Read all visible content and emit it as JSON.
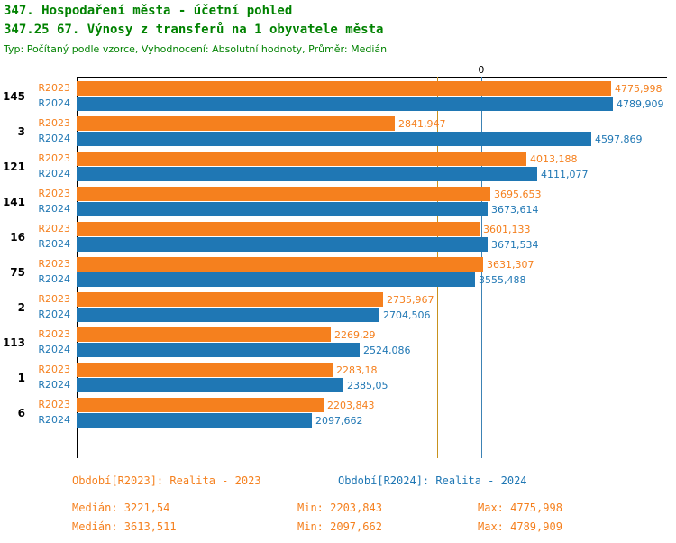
{
  "header": {
    "title": "347. Hospodaření města - účetní pohled",
    "subtitle": "347.25 67. Výnosy z transferů na 1 obyvatele města",
    "meta": "Typ: Počítaný podle vzorce, Vyhodnocení: Absolutní hodnoty, Průměr: Medián"
  },
  "colors": {
    "title-green": "#008200",
    "r2023": "#F5801E",
    "r2024": "#1F77B4",
    "median-r2023": "#C8921E",
    "median-r2024": "#3C82B4",
    "axis": "#000000"
  },
  "chart_data": {
    "type": "bar",
    "orientation": "horizontal",
    "grid": false,
    "legend_position": "bottom",
    "axis_zero_label": "0",
    "xmax": 4789.909,
    "categories": [
      "145",
      "3",
      "121",
      "141",
      "16",
      "75",
      "2",
      "113",
      "1",
      "6"
    ],
    "series": [
      {
        "name": "R2023",
        "color_key": "r2023",
        "values": [
          4775.998,
          2841.947,
          4013.188,
          3695.653,
          3601.133,
          3631.307,
          2735.967,
          2269.29,
          2283.18,
          2203.843
        ],
        "labels": [
          "4775,998",
          "2841,947",
          "4013,188",
          "3695,653",
          "3601,133",
          "3631,307",
          "2735,967",
          "2269,29",
          "2283,18",
          "2203,843"
        ]
      },
      {
        "name": "R2024",
        "color_key": "r2024",
        "values": [
          4789.909,
          4597.869,
          4111.077,
          3673.614,
          3671.534,
          3555.488,
          2704.506,
          2524.086,
          2385.05,
          2097.662
        ],
        "labels": [
          "4789,909",
          "4597,869",
          "4111,077",
          "3673,614",
          "3671,534",
          "3555,488",
          "2704,506",
          "2524,086",
          "2385,05",
          "2097,662"
        ]
      }
    ],
    "median_lines": [
      {
        "series": "R2023",
        "value": 3221.54
      },
      {
        "series": "R2024",
        "value": 3613.511
      }
    ]
  },
  "legend": {
    "r2023": {
      "period": "Období[R2023]: Realita - 2023",
      "median": "Medián: 3221,54",
      "min": "Min: 2203,843",
      "max": "Max: 4775,998"
    },
    "r2024": {
      "period": "Období[R2024]: Realita - 2024",
      "median": "Medián: 3613,511",
      "min": "Min: 2097,662",
      "max": "Max: 4789,909"
    }
  }
}
